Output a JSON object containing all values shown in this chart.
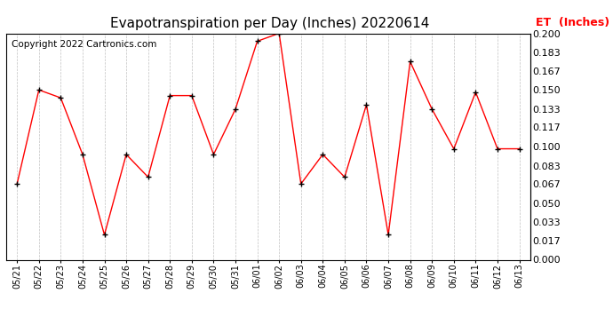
{
  "title": "Evapotranspiration per Day (Inches) 20220614",
  "copyright": "Copyright 2022 Cartronics.com",
  "legend_label": "ET  (Inches)",
  "dates": [
    "05/21",
    "05/22",
    "05/23",
    "05/24",
    "05/25",
    "05/26",
    "05/27",
    "05/28",
    "05/29",
    "05/30",
    "05/31",
    "06/01",
    "06/02",
    "06/03",
    "06/04",
    "06/05",
    "06/06",
    "06/07",
    "06/08",
    "06/09",
    "06/10",
    "06/11",
    "06/12",
    "06/13"
  ],
  "values": [
    0.067,
    0.15,
    0.143,
    0.093,
    0.022,
    0.093,
    0.073,
    0.145,
    0.145,
    0.093,
    0.133,
    0.193,
    0.2,
    0.067,
    0.093,
    0.073,
    0.137,
    0.022,
    0.175,
    0.133,
    0.098,
    0.148,
    0.098,
    0.098
  ],
  "line_color": "#ff0000",
  "marker_color": "#000000",
  "background_color": "#ffffff",
  "grid_color": "#c0c0c0",
  "ylim": [
    0.0,
    0.2
  ],
  "yticks": [
    0.0,
    0.017,
    0.033,
    0.05,
    0.067,
    0.083,
    0.1,
    0.117,
    0.133,
    0.15,
    0.167,
    0.183,
    0.2
  ],
  "title_fontsize": 11,
  "copyright_fontsize": 7.5,
  "legend_fontsize": 9,
  "tick_fontsize": 7,
  "ytick_fontsize": 8
}
